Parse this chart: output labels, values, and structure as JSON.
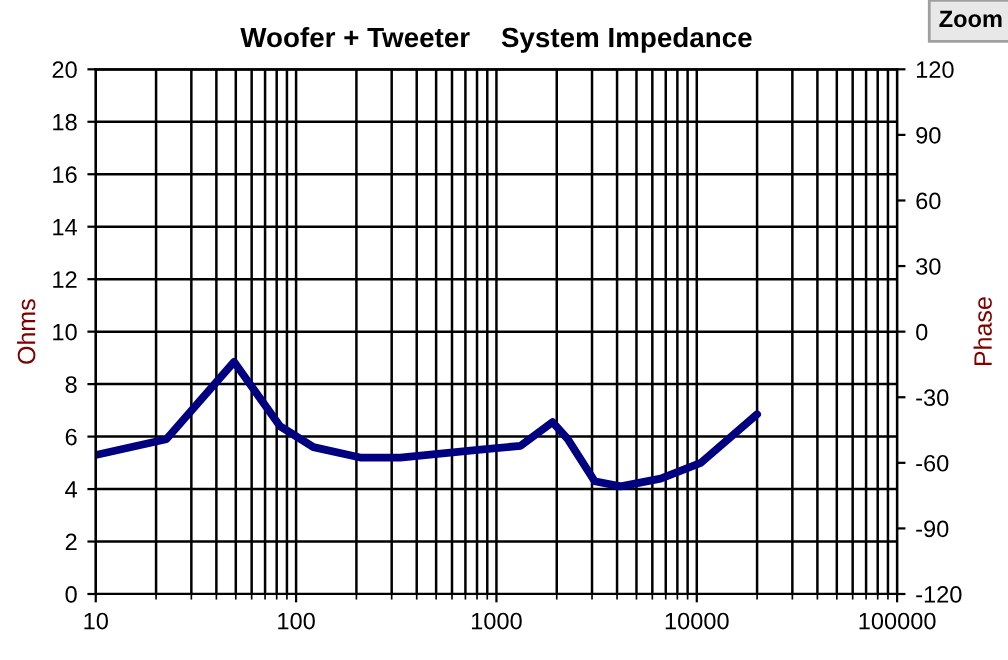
{
  "chart_data": {
    "type": "line",
    "title": "Woofer + Tweeter    System Impedance",
    "ylabel": "Ohms",
    "y2label": "Phase",
    "annotations": [
      "Zoom"
    ],
    "log": "x",
    "grid": true,
    "x": [
      10,
      22.5,
      49,
      83,
      122,
      209,
      331,
      832,
      1318,
      1905,
      2270,
      3090,
      4170,
      6600,
      10470,
      20000
    ],
    "series": [
      {
        "color": "#000080",
        "values": [
          5.3,
          5.9,
          8.85,
          6.4,
          5.6,
          5.2,
          5.2,
          5.5,
          5.65,
          6.55,
          5.9,
          4.3,
          4.1,
          4.4,
          5.0,
          6.85
        ]
      }
    ],
    "xlim": [
      10,
      100000
    ],
    "xticks": [
      10,
      100,
      1000,
      10000,
      100000
    ],
    "ylim": [
      0,
      20
    ],
    "yticks": [
      0,
      2,
      4,
      6,
      8,
      10,
      12,
      14,
      16,
      18,
      20
    ],
    "y2lim": [
      -120,
      120
    ],
    "y2ticks": [
      -120,
      -90,
      -60,
      -30,
      0,
      30,
      60,
      90,
      120
    ]
  }
}
